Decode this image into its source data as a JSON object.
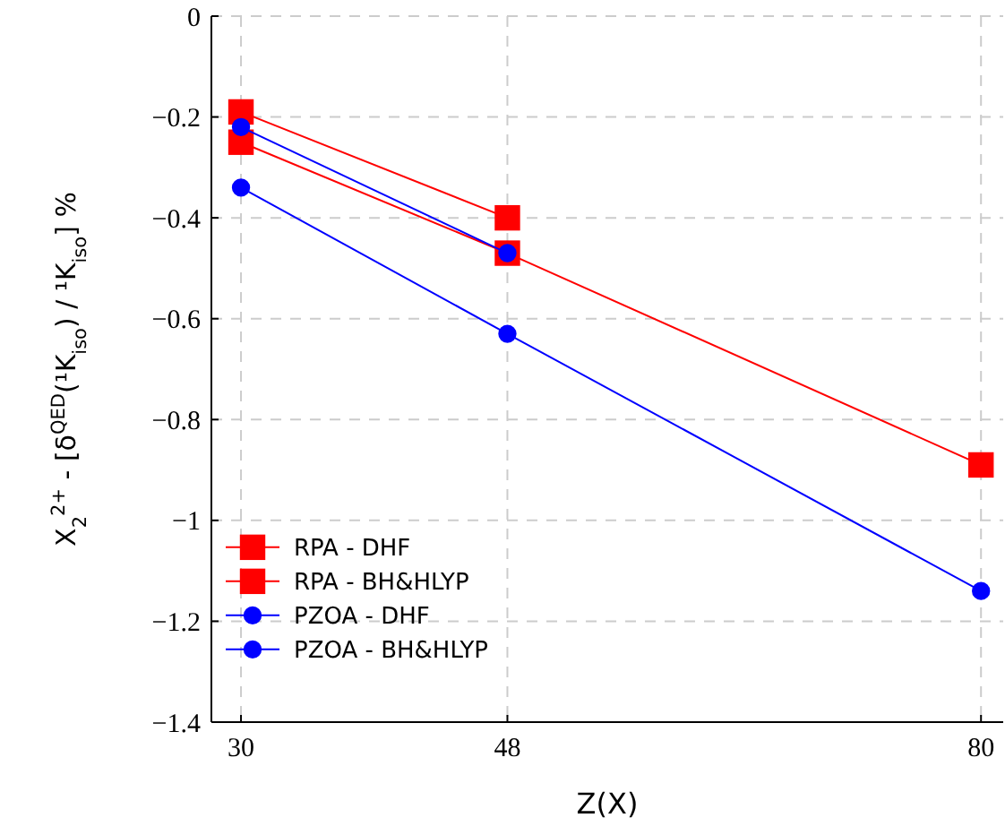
{
  "chart_data": {
    "type": "line",
    "xlabel": "Z(X)",
    "ylabel": "X$_{2}$$^{2+}$ - [δ$^{QED}$(¹K$_{iso}$) / ¹K$_{iso}$] %",
    "x": [
      30,
      48,
      80
    ],
    "xlim": [
      28,
      81.5
    ],
    "xticks": [
      30,
      48,
      80
    ],
    "ylim": [
      -1.4,
      0
    ],
    "yticks": [
      -1.4,
      -1.2,
      -1,
      -0.8,
      -0.6,
      -0.4,
      -0.2,
      0
    ],
    "grid": true,
    "legend": "bottom left",
    "line_style": "solid",
    "series": [
      {
        "name": "RPA - DHF",
        "color": "#ff0000",
        "marker": "square",
        "values": [
          -0.25,
          -0.47,
          -0.89
        ]
      },
      {
        "name": "RPA - BH&HLYP",
        "color": "#ff0000",
        "marker": "square",
        "values": [
          -0.19,
          -0.4,
          null
        ]
      },
      {
        "name": "PZOA - DHF",
        "color": "#0000ff",
        "marker": "circle",
        "values": [
          -0.34,
          -0.63,
          -1.14
        ]
      },
      {
        "name": "PZOA - BH&HLYP",
        "color": "#0000ff",
        "marker": "circle",
        "values": [
          -0.22,
          -0.47,
          null
        ]
      }
    ]
  }
}
